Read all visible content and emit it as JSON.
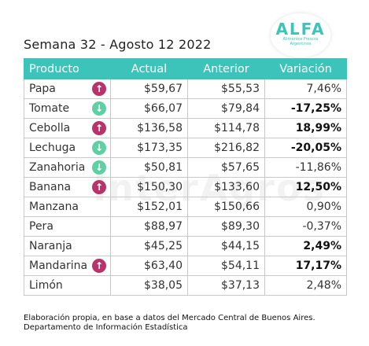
{
  "header": {
    "title": "Semana 32 - Agosto 12 2022"
  },
  "logo": {
    "name": "ALFA",
    "subtitle": "Alimentos Frescos Argentinos"
  },
  "watermark": "InterAgros",
  "colors": {
    "header_bg": "#3cc4bb",
    "up_arrow": "#b8336a",
    "down_arrow": "#5fcfa4"
  },
  "table": {
    "columns": [
      "Producto",
      "Actual",
      "Anterior",
      "Variación"
    ],
    "rows": [
      {
        "product": "Papa",
        "trend": "up",
        "actual": "$59,67",
        "anterior": "$55,53",
        "variacion": "7,46%",
        "bold": false
      },
      {
        "product": "Tomate",
        "trend": "down",
        "actual": "$66,07",
        "anterior": "$79,84",
        "variacion": "-17,25%",
        "bold": true
      },
      {
        "product": "Cebolla",
        "trend": "up",
        "actual": "$136,58",
        "anterior": "$114,78",
        "variacion": "18,99%",
        "bold": true
      },
      {
        "product": "Lechuga",
        "trend": "down",
        "actual": "$173,35",
        "anterior": "$216,82",
        "variacion": "-20,05%",
        "bold": true
      },
      {
        "product": "Zanahoria",
        "trend": "down",
        "actual": "$50,81",
        "anterior": "$57,65",
        "variacion": "-11,86%",
        "bold": false
      },
      {
        "product": "Banana",
        "trend": "up",
        "actual": "$150,30",
        "anterior": "$133,60",
        "variacion": "12,50%",
        "bold": true
      },
      {
        "product": "Manzana",
        "trend": "",
        "actual": "$152,01",
        "anterior": "$150,66",
        "variacion": "0,90%",
        "bold": false
      },
      {
        "product": "Pera",
        "trend": "",
        "actual": "$88,97",
        "anterior": "$89,30",
        "variacion": "-0,37%",
        "bold": false
      },
      {
        "product": "Naranja",
        "trend": "",
        "actual": "$45,25",
        "anterior": "$44,15",
        "variacion": "2,49%",
        "bold": true
      },
      {
        "product": "Mandarina",
        "trend": "up",
        "actual": "$63,40",
        "anterior": "$54,11",
        "variacion": "17,17%",
        "bold": true
      },
      {
        "product": "Limón",
        "trend": "",
        "actual": "$38,05",
        "anterior": "$37,13",
        "variacion": "2,48%",
        "bold": false
      }
    ]
  },
  "footnote": {
    "line1": "Elaboración propia, en base a datos del Mercado Central de Buenos Aires.",
    "line2": "Departamento de Información Estadística"
  }
}
